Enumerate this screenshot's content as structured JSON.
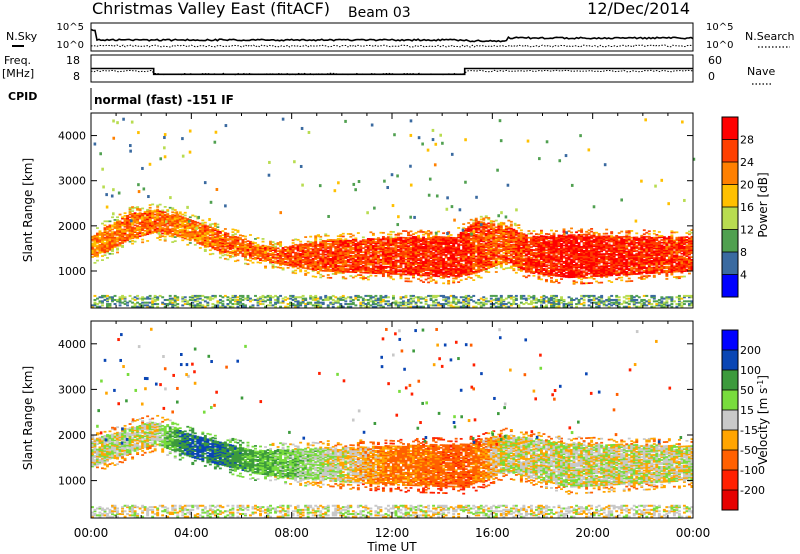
{
  "header": {
    "station": "Christmas Valley East (fitACF)",
    "beam": "Beam 03",
    "date": "12/Dec/2014"
  },
  "strip": {
    "nsky_label": "N.Sky",
    "nsky_ticks": [
      "10^5",
      "10^0"
    ],
    "nsearch_label": "N.Search",
    "nsearch_ticks": [
      "10^5",
      "10^0"
    ],
    "freq_label": "Freq.",
    "freq_unit": "[MHz]",
    "freq_ticks": [
      "18",
      "8"
    ],
    "nave_label": "Nave",
    "nave_ticks": [
      "60",
      "0"
    ],
    "cpid_label": "CPID",
    "cpid_text": "normal (fast) -151 IF"
  },
  "axes": {
    "y_label": "Slant Range [km]",
    "y_ticks": [
      "4000",
      "3000",
      "2000",
      "1000"
    ],
    "x_ticks": [
      "00:00",
      "04:00",
      "08:00",
      "12:00",
      "16:00",
      "20:00",
      "00:00"
    ],
    "x_label": "Time UT"
  },
  "colorbars": {
    "power": {
      "label": "Power [dB]",
      "ticks": [
        "28",
        "24",
        "20",
        "16",
        "12",
        "8",
        "4"
      ],
      "colors": [
        "#ff0000",
        "#ff4000",
        "#ff8000",
        "#ffc000",
        "#b8dc50",
        "#50a050",
        "#3a6aa0",
        "#0000ff"
      ]
    },
    "velocity": {
      "label": "Velocity [m s",
      "label_sup": "-1",
      "label_end": "]",
      "ticks": [
        "200",
        "100",
        "50",
        "15",
        "-15",
        "-50",
        "-100",
        "-200"
      ],
      "colors": [
        "#0000ff",
        "#0a46b4",
        "#3c9a3c",
        "#78dc3c",
        "#c8c8c8",
        "#ffa500",
        "#ff6000",
        "#ff2000",
        "#e60000"
      ]
    }
  },
  "chart_data": {
    "type": "heatmap",
    "title": "Christmas Valley East (fitACF) Beam 03 12/Dec/2014",
    "xlabel": "Time UT",
    "ylabel": "Slant Range [km]",
    "xlim": [
      "00:00",
      "24:00"
    ],
    "ylim": [
      180,
      4500
    ],
    "panels": [
      {
        "name": "Power [dB]",
        "range": [
          0,
          30
        ],
        "echo_bands": [
          {
            "t": 0.0,
            "bottom": 1300,
            "top": 1750,
            "value": 20
          },
          {
            "t": 0.5,
            "bottom": 1400,
            "top": 1950,
            "value": 21
          },
          {
            "t": 1.5,
            "bottom": 1700,
            "top": 2250,
            "value": 22
          },
          {
            "t": 2.5,
            "bottom": 1850,
            "top": 2350,
            "value": 23
          },
          {
            "t": 3.5,
            "bottom": 1750,
            "top": 2200,
            "value": 21
          },
          {
            "t": 5.0,
            "bottom": 1450,
            "top": 1900,
            "value": 22
          },
          {
            "t": 6.5,
            "bottom": 1250,
            "top": 1600,
            "value": 22
          },
          {
            "t": 7.5,
            "bottom": 1150,
            "top": 1500,
            "value": 23
          },
          {
            "t": 9.0,
            "bottom": 1000,
            "top": 1650,
            "value": 24
          },
          {
            "t": 11.0,
            "bottom": 950,
            "top": 1700,
            "value": 25
          },
          {
            "t": 13.0,
            "bottom": 900,
            "top": 1750,
            "value": 26
          },
          {
            "t": 14.5,
            "bottom": 850,
            "top": 1750,
            "value": 27
          },
          {
            "t": 15.3,
            "bottom": 950,
            "top": 2100,
            "value": 24
          },
          {
            "t": 16.5,
            "bottom": 1200,
            "top": 2000,
            "value": 23
          },
          {
            "t": 17.5,
            "bottom": 950,
            "top": 1750,
            "value": 26
          },
          {
            "t": 19.0,
            "bottom": 850,
            "top": 1800,
            "value": 28
          },
          {
            "t": 21.0,
            "bottom": 900,
            "top": 1750,
            "value": 27
          },
          {
            "t": 24.0,
            "bottom": 1000,
            "top": 1750,
            "value": 25
          }
        ]
      },
      {
        "name": "Velocity [m s^-1]",
        "range": [
          -250,
          250
        ],
        "echo_bands": [
          {
            "t": 0.0,
            "bottom": 1300,
            "top": 1900,
            "value": 0
          },
          {
            "t": 2.5,
            "bottom": 1800,
            "top": 2300,
            "value": 0
          },
          {
            "t": 4.0,
            "bottom": 1500,
            "top": 2000,
            "value": 120
          },
          {
            "t": 6.5,
            "bottom": 1150,
            "top": 1650,
            "value": 60
          },
          {
            "t": 9.0,
            "bottom": 1000,
            "top": 1700,
            "value": 20
          },
          {
            "t": 12.0,
            "bottom": 900,
            "top": 1750,
            "value": -60
          },
          {
            "t": 15.0,
            "bottom": 850,
            "top": 1800,
            "value": -80
          },
          {
            "t": 16.5,
            "bottom": 1200,
            "top": 2000,
            "value": 0
          },
          {
            "t": 19.0,
            "bottom": 850,
            "top": 1800,
            "value": 0
          },
          {
            "t": 24.0,
            "bottom": 1000,
            "top": 1750,
            "value": 0
          }
        ]
      }
    ],
    "frequency_mhz": [
      {
        "from": 0.0,
        "to": 2.5,
        "value": 13.5
      },
      {
        "from": 2.5,
        "to": 14.9,
        "value": 10.5
      },
      {
        "from": 14.9,
        "to": 24.0,
        "value": 13.5
      }
    ],
    "noise_level": "10^0 to 10^5"
  }
}
